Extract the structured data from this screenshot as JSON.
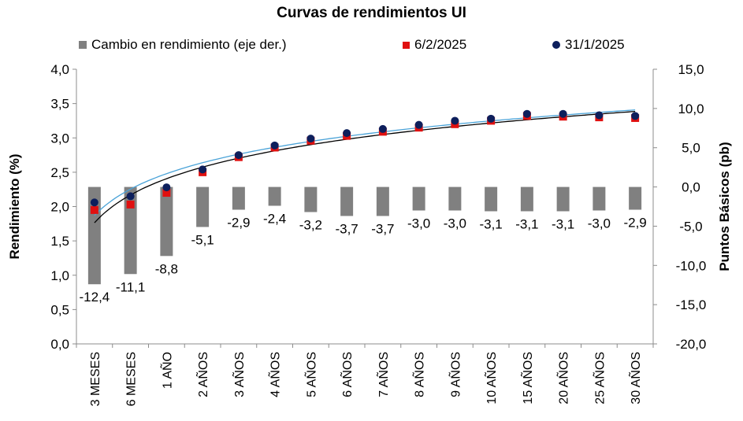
{
  "chart_data": {
    "type": "bar",
    "title": "Curvas de rendimientos UI",
    "ylabel": "Rendimiento (%)",
    "y2label": "Puntos Básicos (pb)",
    "ylim": [
      0,
      4.0
    ],
    "y2lim": [
      -20,
      15
    ],
    "yticks": [
      "0,0",
      "0,5",
      "1,0",
      "1,5",
      "2,0",
      "2,5",
      "3,0",
      "3,5",
      "4,0"
    ],
    "y2ticks": [
      "-20,0",
      "-15,0",
      "-10,0",
      "-5,0",
      "0,0",
      "5,0",
      "10,0",
      "15,0"
    ],
    "categories": [
      "3 MESES",
      "6 MESES",
      "1 AÑO",
      "2 AÑOS",
      "3 AÑOS",
      "4 AÑOS",
      "5 AÑOS",
      "6 AÑOS",
      "7 AÑOS",
      "8 AÑOS",
      "9 AÑOS",
      "10 AÑOS",
      "15 AÑOS",
      "20 AÑOS",
      "25 AÑOS",
      "30 AÑOS"
    ],
    "series": [
      {
        "name": "Cambio en rendimiento (eje der.)",
        "type": "bar",
        "axis": "right",
        "color": "#808080",
        "values": [
          -12.4,
          -11.1,
          -8.8,
          -5.1,
          -2.9,
          -2.4,
          -3.2,
          -3.7,
          -3.7,
          -3.0,
          -3.0,
          -3.1,
          -3.1,
          -3.1,
          -3.0,
          -2.9
        ],
        "labels": [
          "-12,4",
          "-11,1",
          "-8,8",
          "-5,1",
          "-2,9",
          "-2,4",
          "-3,2",
          "-3,7",
          "-3,7",
          "-3,0",
          "-3,0",
          "-3,1",
          "-3,1",
          "-3,1",
          "-3,0",
          "-2,9"
        ]
      },
      {
        "name": "6/2/2025",
        "type": "scatter",
        "axis": "left",
        "color": "#e01010",
        "marker": "square",
        "values": [
          1.95,
          2.03,
          2.2,
          2.5,
          2.72,
          2.86,
          2.96,
          3.03,
          3.09,
          3.15,
          3.2,
          3.25,
          3.32,
          3.31,
          3.3,
          3.29
        ]
      },
      {
        "name": "31/1/2025",
        "type": "scatter",
        "axis": "left",
        "color": "#0d1f5c",
        "marker": "circle",
        "values": [
          2.06,
          2.15,
          2.28,
          2.54,
          2.75,
          2.89,
          2.99,
          3.07,
          3.13,
          3.19,
          3.25,
          3.28,
          3.35,
          3.35,
          3.33,
          3.32
        ]
      }
    ],
    "trendlines": [
      {
        "series": "6/2/2025",
        "color": "#000000"
      },
      {
        "series": "31/1/2025",
        "color": "#4aa3d8"
      }
    ],
    "legend_position": "top",
    "grid": false
  }
}
